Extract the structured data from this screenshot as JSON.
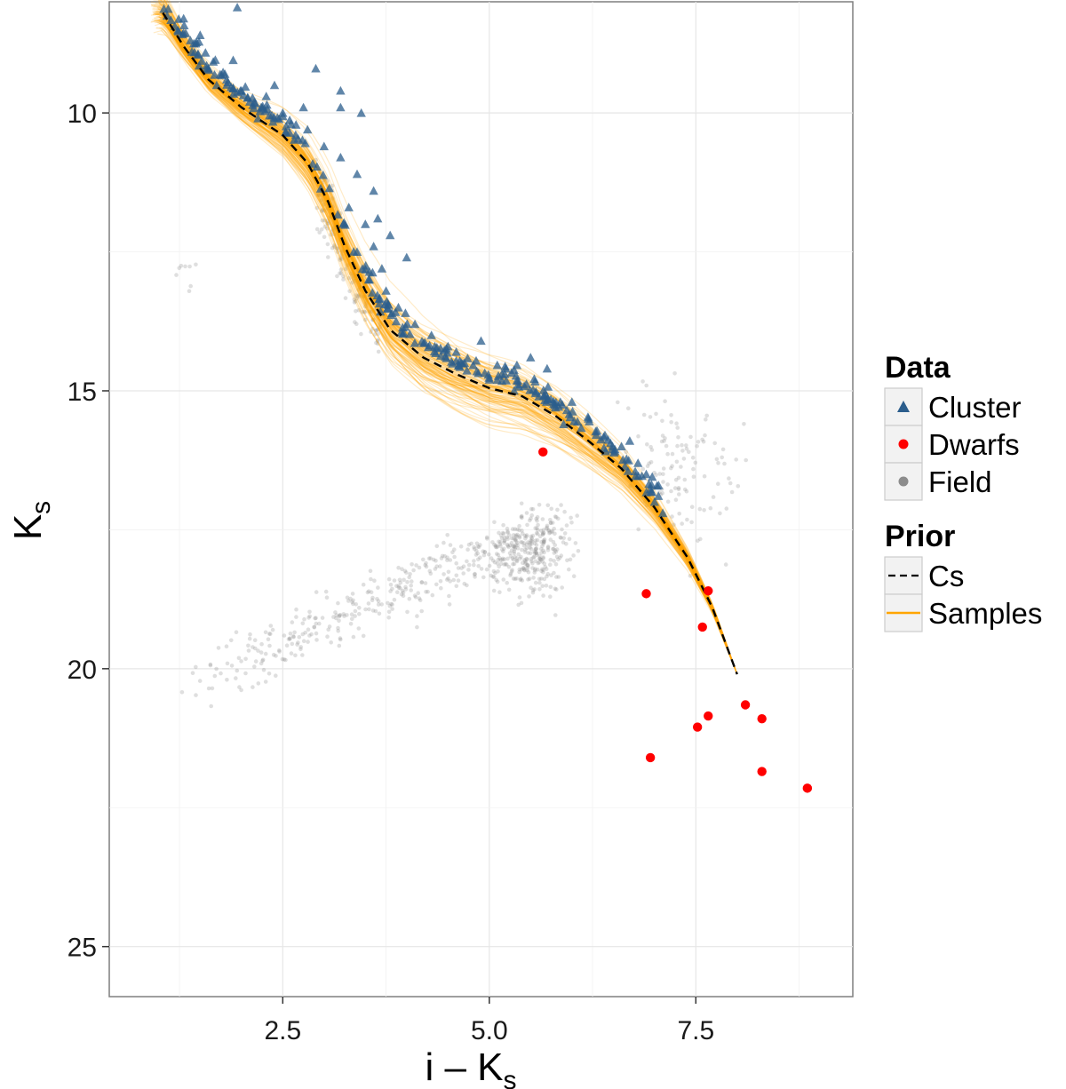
{
  "chart_data": {
    "type": "scatter",
    "title": "",
    "xlabel": "i – K",
    "xlabel_sub": "s",
    "ylabel": "K",
    "ylabel_sub": "s",
    "xlim": [
      0.4,
      9.4
    ],
    "ylim": [
      8.0,
      25.9
    ],
    "y_reversed": true,
    "grid": true,
    "x_ticks": [
      {
        "value": 2.5,
        "label": "2.5"
      },
      {
        "value": 5.0,
        "label": "5.0"
      },
      {
        "value": 7.5,
        "label": "7.5"
      }
    ],
    "y_ticks": [
      {
        "value": 10,
        "label": "10"
      },
      {
        "value": 15,
        "label": "15"
      },
      {
        "value": 20,
        "label": "20"
      },
      {
        "value": 25,
        "label": "25"
      }
    ],
    "legend": {
      "placement": "right",
      "groups": [
        {
          "title": "Data",
          "items": [
            {
              "label": "Cluster",
              "symbol": "triangle",
              "color": "#2b5d8c"
            },
            {
              "label": "Dwarfs",
              "symbol": "circle",
              "color": "#ff0000"
            },
            {
              "label": "Field",
              "symbol": "circle",
              "color": "#8c8c8c"
            }
          ]
        },
        {
          "title": "Prior",
          "items": [
            {
              "label": "Cs",
              "symbol": "dashed-line",
              "color": "#000000"
            },
            {
              "label": "Samples",
              "symbol": "line",
              "color": "#ffa500"
            }
          ]
        }
      ]
    },
    "series": [
      {
        "name": "Cs",
        "kind": "dashed-line",
        "color": "#000000",
        "points": [
          [
            1.05,
            8.2
          ],
          [
            1.3,
            8.8
          ],
          [
            1.6,
            9.4
          ],
          [
            2.0,
            9.9
          ],
          [
            2.5,
            10.4
          ],
          [
            2.8,
            10.9
          ],
          [
            3.05,
            11.6
          ],
          [
            3.25,
            12.4
          ],
          [
            3.5,
            13.2
          ],
          [
            3.8,
            13.9
          ],
          [
            4.2,
            14.4
          ],
          [
            4.6,
            14.7
          ],
          [
            5.0,
            14.95
          ],
          [
            5.4,
            15.1
          ],
          [
            5.8,
            15.45
          ],
          [
            6.2,
            15.9
          ],
          [
            6.6,
            16.4
          ],
          [
            7.0,
            17.1
          ],
          [
            7.4,
            18.0
          ],
          [
            7.7,
            18.9
          ],
          [
            8.0,
            20.1
          ]
        ]
      },
      {
        "name": "Samples",
        "kind": "line-family",
        "color": "#ffa500",
        "count": 120,
        "x_range": [
          0.9,
          8.0
        ]
      },
      {
        "name": "Cluster",
        "kind": "triangle",
        "color": "#2b5d8c",
        "points": [
          [
            1.1,
            8.25
          ],
          [
            1.3,
            8.3
          ],
          [
            1.5,
            8.6
          ],
          [
            1.95,
            8.1
          ],
          [
            1.4,
            8.9
          ],
          [
            1.6,
            9.2
          ],
          [
            1.7,
            9.5
          ],
          [
            1.8,
            9.3
          ],
          [
            2.0,
            9.6
          ],
          [
            2.1,
            9.8
          ],
          [
            2.3,
            9.7
          ],
          [
            2.2,
            10.1
          ],
          [
            2.4,
            9.5
          ],
          [
            2.6,
            10.2
          ],
          [
            2.75,
            9.9
          ],
          [
            2.9,
            9.2
          ],
          [
            3.2,
            9.6
          ],
          [
            3.2,
            9.9
          ],
          [
            3.45,
            10.0
          ],
          [
            2.8,
            10.3
          ],
          [
            3.0,
            10.6
          ],
          [
            3.2,
            10.8
          ],
          [
            3.4,
            11.1
          ],
          [
            3.6,
            11.4
          ],
          [
            3.3,
            11.7
          ],
          [
            3.5,
            12.0
          ],
          [
            3.6,
            12.4
          ],
          [
            3.7,
            12.8
          ],
          [
            3.4,
            12.5
          ],
          [
            3.55,
            13.0
          ],
          [
            3.75,
            13.2
          ],
          [
            3.9,
            13.5
          ],
          [
            4.1,
            13.8
          ],
          [
            4.3,
            14.0
          ],
          [
            4.5,
            14.2
          ],
          [
            4.7,
            14.5
          ],
          [
            4.85,
            14.65
          ],
          [
            5.0,
            14.8
          ],
          [
            5.2,
            14.6
          ],
          [
            5.5,
            14.4
          ],
          [
            5.7,
            14.6
          ],
          [
            5.3,
            15.0
          ],
          [
            5.6,
            15.1
          ],
          [
            5.8,
            15.3
          ],
          [
            6.0,
            15.2
          ],
          [
            6.2,
            15.5
          ],
          [
            6.4,
            15.8
          ],
          [
            6.6,
            16.0
          ],
          [
            6.7,
            15.9
          ],
          [
            6.8,
            16.3
          ],
          [
            6.9,
            16.5
          ],
          [
            7.05,
            16.7
          ],
          [
            7.0,
            17.0
          ],
          [
            7.1,
            17.2
          ],
          [
            4.9,
            14.1
          ],
          [
            4.6,
            14.3
          ],
          [
            3.65,
            11.9
          ],
          [
            3.8,
            12.2
          ],
          [
            4.0,
            12.6
          ],
          [
            2.5,
            10.0
          ],
          [
            1.9,
            9.05
          ],
          [
            5.9,
            15.6
          ]
        ]
      },
      {
        "name": "Dwarfs",
        "kind": "circle",
        "color": "#ff0000",
        "points": [
          [
            5.65,
            16.1
          ],
          [
            6.9,
            18.65
          ],
          [
            7.65,
            18.6
          ],
          [
            7.58,
            19.25
          ],
          [
            8.1,
            20.65
          ],
          [
            8.3,
            20.9
          ],
          [
            7.65,
            20.85
          ],
          [
            7.52,
            21.05
          ],
          [
            6.95,
            21.6
          ],
          [
            8.3,
            21.85
          ],
          [
            8.85,
            22.15
          ]
        ]
      },
      {
        "name": "Field",
        "kind": "circle",
        "color": "#8c8c8c",
        "count": 900,
        "regions": [
          "diagonal band from (1.2, 20.4) to (5.9, 17.2)",
          "clump near (5.5, 18.0)",
          "scatter near (7.2, 15.6)",
          "main sequence overlap near (3.2, 13.0)"
        ]
      }
    ]
  }
}
